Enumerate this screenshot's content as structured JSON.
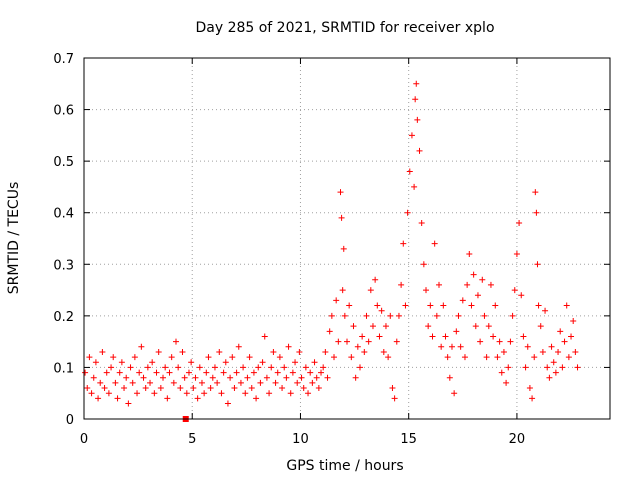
{
  "chart_data": {
    "type": "scatter",
    "title": "Day 285 of 2021, SRMTID for receiver xplo",
    "xlabel": "GPS time / hours",
    "ylabel": "SRMTID / TECUs",
    "xlim": [
      0,
      24.3
    ],
    "ylim": [
      0,
      0.7
    ],
    "xticks": [
      0,
      5,
      10,
      15,
      20
    ],
    "xtick_labels": [
      "0",
      "5",
      "10",
      "15",
      "20"
    ],
    "yticks": [
      0,
      0.1,
      0.2,
      0.3,
      0.4,
      0.5,
      0.6,
      0.7
    ],
    "ytick_labels": [
      "0",
      "0.1",
      "0.2",
      "0.3",
      "0.4",
      "0.5",
      "0.6",
      "0.7"
    ],
    "grid": true,
    "marker": "+",
    "color": "#ff0000",
    "extra_marker": {
      "shape": "square",
      "x": 4.7,
      "y": 0
    },
    "series": [
      {
        "name": "SRMTID",
        "points": [
          [
            0.05,
            0.09
          ],
          [
            0.15,
            0.06
          ],
          [
            0.25,
            0.12
          ],
          [
            0.35,
            0.05
          ],
          [
            0.45,
            0.08
          ],
          [
            0.55,
            0.11
          ],
          [
            0.65,
            0.04
          ],
          [
            0.75,
            0.07
          ],
          [
            0.85,
            0.13
          ],
          [
            0.95,
            0.06
          ],
          [
            1.05,
            0.09
          ],
          [
            1.15,
            0.05
          ],
          [
            1.25,
            0.1
          ],
          [
            1.35,
            0.12
          ],
          [
            1.45,
            0.07
          ],
          [
            1.55,
            0.04
          ],
          [
            1.65,
            0.09
          ],
          [
            1.75,
            0.11
          ],
          [
            1.85,
            0.06
          ],
          [
            1.95,
            0.08
          ],
          [
            2.05,
            0.03
          ],
          [
            2.15,
            0.1
          ],
          [
            2.25,
            0.07
          ],
          [
            2.35,
            0.12
          ],
          [
            2.45,
            0.05
          ],
          [
            2.55,
            0.09
          ],
          [
            2.65,
            0.14
          ],
          [
            2.75,
            0.08
          ],
          [
            2.85,
            0.06
          ],
          [
            2.95,
            0.1
          ],
          [
            3.05,
            0.07
          ],
          [
            3.15,
            0.11
          ],
          [
            3.25,
            0.05
          ],
          [
            3.35,
            0.09
          ],
          [
            3.45,
            0.13
          ],
          [
            3.55,
            0.06
          ],
          [
            3.65,
            0.08
          ],
          [
            3.75,
            0.1
          ],
          [
            3.85,
            0.04
          ],
          [
            3.95,
            0.09
          ],
          [
            4.05,
            0.12
          ],
          [
            4.15,
            0.07
          ],
          [
            4.25,
            0.15
          ],
          [
            4.35,
            0.1
          ],
          [
            4.45,
            0.06
          ],
          [
            4.55,
            0.13
          ],
          [
            4.65,
            0.08
          ],
          [
            4.75,
            0.05
          ],
          [
            4.85,
            0.09
          ],
          [
            4.95,
            0.11
          ],
          [
            5.05,
            0.06
          ],
          [
            5.15,
            0.08
          ],
          [
            5.25,
            0.04
          ],
          [
            5.35,
            0.1
          ],
          [
            5.45,
            0.07
          ],
          [
            5.55,
            0.05
          ],
          [
            5.65,
            0.09
          ],
          [
            5.75,
            0.12
          ],
          [
            5.85,
            0.06
          ],
          [
            5.95,
            0.08
          ],
          [
            6.05,
            0.1
          ],
          [
            6.15,
            0.07
          ],
          [
            6.25,
            0.13
          ],
          [
            6.35,
            0.05
          ],
          [
            6.45,
            0.09
          ],
          [
            6.55,
            0.11
          ],
          [
            6.65,
            0.03
          ],
          [
            6.75,
            0.08
          ],
          [
            6.85,
            0.12
          ],
          [
            6.95,
            0.06
          ],
          [
            7.05,
            0.09
          ],
          [
            7.15,
            0.14
          ],
          [
            7.25,
            0.07
          ],
          [
            7.35,
            0.1
          ],
          [
            7.45,
            0.05
          ],
          [
            7.55,
            0.08
          ],
          [
            7.65,
            0.12
          ],
          [
            7.75,
            0.06
          ],
          [
            7.85,
            0.09
          ],
          [
            7.95,
            0.04
          ],
          [
            8.05,
            0.1
          ],
          [
            8.15,
            0.07
          ],
          [
            8.25,
            0.11
          ],
          [
            8.35,
            0.16
          ],
          [
            8.45,
            0.08
          ],
          [
            8.55,
            0.05
          ],
          [
            8.65,
            0.1
          ],
          [
            8.75,
            0.13
          ],
          [
            8.85,
            0.07
          ],
          [
            8.95,
            0.09
          ],
          [
            9.05,
            0.12
          ],
          [
            9.15,
            0.06
          ],
          [
            9.25,
            0.1
          ],
          [
            9.35,
            0.08
          ],
          [
            9.45,
            0.14
          ],
          [
            9.55,
            0.05
          ],
          [
            9.65,
            0.09
          ],
          [
            9.75,
            0.11
          ],
          [
            9.85,
            0.07
          ],
          [
            9.95,
            0.13
          ],
          [
            10.05,
            0.08
          ],
          [
            10.15,
            0.06
          ],
          [
            10.25,
            0.1
          ],
          [
            10.35,
            0.05
          ],
          [
            10.45,
            0.09
          ],
          [
            10.55,
            0.07
          ],
          [
            10.65,
            0.11
          ],
          [
            10.75,
            0.08
          ],
          [
            10.85,
            0.06
          ],
          [
            10.95,
            0.09
          ],
          [
            11.05,
            0.1
          ],
          [
            11.15,
            0.13
          ],
          [
            11.25,
            0.08
          ],
          [
            11.35,
            0.17
          ],
          [
            11.45,
            0.2
          ],
          [
            11.55,
            0.12
          ],
          [
            11.65,
            0.23
          ],
          [
            11.75,
            0.15
          ],
          [
            11.85,
            0.44
          ],
          [
            11.9,
            0.39
          ],
          [
            11.95,
            0.25
          ],
          [
            12.0,
            0.33
          ],
          [
            12.05,
            0.2
          ],
          [
            12.15,
            0.15
          ],
          [
            12.25,
            0.22
          ],
          [
            12.35,
            0.12
          ],
          [
            12.45,
            0.18
          ],
          [
            12.55,
            0.08
          ],
          [
            12.65,
            0.14
          ],
          [
            12.75,
            0.1
          ],
          [
            12.85,
            0.16
          ],
          [
            12.95,
            0.13
          ],
          [
            13.05,
            0.2
          ],
          [
            13.15,
            0.15
          ],
          [
            13.25,
            0.25
          ],
          [
            13.35,
            0.18
          ],
          [
            13.45,
            0.27
          ],
          [
            13.55,
            0.22
          ],
          [
            13.65,
            0.16
          ],
          [
            13.75,
            0.21
          ],
          [
            13.85,
            0.13
          ],
          [
            13.95,
            0.18
          ],
          [
            14.05,
            0.12
          ],
          [
            14.15,
            0.2
          ],
          [
            14.25,
            0.06
          ],
          [
            14.35,
            0.04
          ],
          [
            14.45,
            0.15
          ],
          [
            14.55,
            0.2
          ],
          [
            14.65,
            0.26
          ],
          [
            14.75,
            0.34
          ],
          [
            14.85,
            0.22
          ],
          [
            14.95,
            0.4
          ],
          [
            15.05,
            0.48
          ],
          [
            15.15,
            0.55
          ],
          [
            15.25,
            0.45
          ],
          [
            15.3,
            0.62
          ],
          [
            15.35,
            0.65
          ],
          [
            15.4,
            0.58
          ],
          [
            15.5,
            0.52
          ],
          [
            15.6,
            0.38
          ],
          [
            15.7,
            0.3
          ],
          [
            15.8,
            0.25
          ],
          [
            15.9,
            0.18
          ],
          [
            16.0,
            0.22
          ],
          [
            16.1,
            0.16
          ],
          [
            16.2,
            0.34
          ],
          [
            16.3,
            0.2
          ],
          [
            16.4,
            0.26
          ],
          [
            16.5,
            0.14
          ],
          [
            16.6,
            0.22
          ],
          [
            16.7,
            0.16
          ],
          [
            16.8,
            0.12
          ],
          [
            16.9,
            0.08
          ],
          [
            17.0,
            0.14
          ],
          [
            17.1,
            0.05
          ],
          [
            17.2,
            0.17
          ],
          [
            17.3,
            0.2
          ],
          [
            17.4,
            0.14
          ],
          [
            17.5,
            0.23
          ],
          [
            17.6,
            0.12
          ],
          [
            17.7,
            0.26
          ],
          [
            17.8,
            0.32
          ],
          [
            17.9,
            0.22
          ],
          [
            18.0,
            0.28
          ],
          [
            18.1,
            0.18
          ],
          [
            18.2,
            0.24
          ],
          [
            18.3,
            0.15
          ],
          [
            18.4,
            0.27
          ],
          [
            18.5,
            0.2
          ],
          [
            18.6,
            0.12
          ],
          [
            18.7,
            0.18
          ],
          [
            18.8,
            0.26
          ],
          [
            18.9,
            0.16
          ],
          [
            19.0,
            0.22
          ],
          [
            19.1,
            0.12
          ],
          [
            19.2,
            0.15
          ],
          [
            19.3,
            0.09
          ],
          [
            19.4,
            0.13
          ],
          [
            19.5,
            0.07
          ],
          [
            19.6,
            0.1
          ],
          [
            19.7,
            0.15
          ],
          [
            19.8,
            0.2
          ],
          [
            19.9,
            0.25
          ],
          [
            20.0,
            0.32
          ],
          [
            20.1,
            0.38
          ],
          [
            20.2,
            0.24
          ],
          [
            20.3,
            0.16
          ],
          [
            20.4,
            0.1
          ],
          [
            20.5,
            0.14
          ],
          [
            20.6,
            0.06
          ],
          [
            20.7,
            0.04
          ],
          [
            20.8,
            0.12
          ],
          [
            20.85,
            0.44
          ],
          [
            20.9,
            0.4
          ],
          [
            20.95,
            0.3
          ],
          [
            21.0,
            0.22
          ],
          [
            21.1,
            0.18
          ],
          [
            21.2,
            0.13
          ],
          [
            21.3,
            0.21
          ],
          [
            21.4,
            0.1
          ],
          [
            21.5,
            0.08
          ],
          [
            21.6,
            0.14
          ],
          [
            21.7,
            0.11
          ],
          [
            21.8,
            0.09
          ],
          [
            21.9,
            0.13
          ],
          [
            22.0,
            0.17
          ],
          [
            22.1,
            0.1
          ],
          [
            22.2,
            0.15
          ],
          [
            22.3,
            0.22
          ],
          [
            22.4,
            0.12
          ],
          [
            22.5,
            0.16
          ],
          [
            22.6,
            0.19
          ],
          [
            22.7,
            0.13
          ],
          [
            22.8,
            0.1
          ]
        ]
      }
    ]
  }
}
